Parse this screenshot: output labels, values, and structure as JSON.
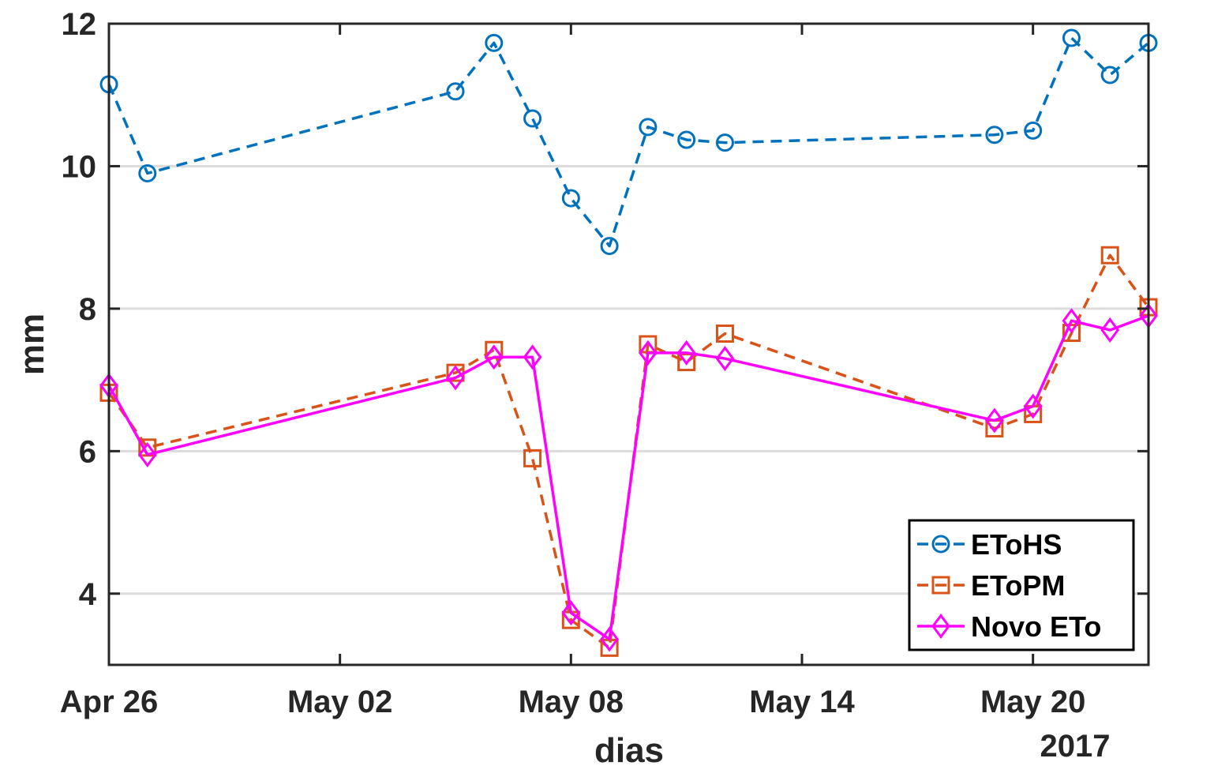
{
  "chart_data": {
    "type": "line",
    "title": "",
    "xlabel": "dias",
    "ylabel": "mm",
    "x_year_label": "2017",
    "xlim": [
      "2017-04-26",
      "2017-05-23"
    ],
    "ylim": [
      3,
      12
    ],
    "x_ticks": [
      {
        "date": "2017-04-26",
        "label": "Apr 26"
      },
      {
        "date": "2017-05-02",
        "label": "May 02"
      },
      {
        "date": "2017-05-08",
        "label": "May 08"
      },
      {
        "date": "2017-05-14",
        "label": "May 14"
      },
      {
        "date": "2017-05-20",
        "label": "May 20"
      }
    ],
    "y_ticks": [
      {
        "value": 4,
        "label": "4"
      },
      {
        "value": 6,
        "label": "6"
      },
      {
        "value": 8,
        "label": "8"
      },
      {
        "value": 10,
        "label": "10"
      },
      {
        "value": 12,
        "label": "12"
      }
    ],
    "grid": "horizontal",
    "legend_position": "bottom-right",
    "x": [
      "2017-04-26",
      "2017-04-27",
      "2017-05-05",
      "2017-05-06",
      "2017-05-07",
      "2017-05-08",
      "2017-05-09",
      "2017-05-10",
      "2017-05-11",
      "2017-05-12",
      "2017-05-19",
      "2017-05-20",
      "2017-05-21",
      "2017-05-22",
      "2017-05-23"
    ],
    "series": [
      {
        "name": "EToHS",
        "color": "#0072BD",
        "line": "dashed",
        "marker": "circle",
        "values": [
          11.15,
          9.9,
          11.05,
          11.73,
          10.67,
          9.55,
          8.88,
          10.55,
          10.37,
          10.33,
          10.44,
          10.5,
          11.8,
          11.28,
          11.73
        ]
      },
      {
        "name": "EToPM",
        "color": "#D95319",
        "line": "dashed",
        "marker": "square",
        "values": [
          6.82,
          6.05,
          7.1,
          7.42,
          5.9,
          3.63,
          3.24,
          7.5,
          7.25,
          7.65,
          6.32,
          6.52,
          7.66,
          8.75,
          8.02
        ]
      },
      {
        "name": "Novo ETo",
        "color": "#FF00FF",
        "line": "solid",
        "marker": "diamond",
        "values": [
          6.92,
          5.95,
          7.03,
          7.32,
          7.32,
          3.73,
          3.36,
          7.38,
          7.38,
          7.3,
          6.43,
          6.63,
          7.83,
          7.7,
          7.9
        ]
      }
    ]
  }
}
